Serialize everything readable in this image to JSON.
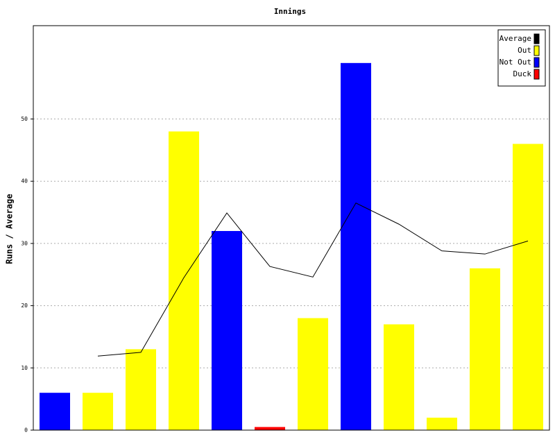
{
  "chart_data": {
    "type": "bar",
    "title": "Innings",
    "y_label": "Runs / Average",
    "categories": [
      null,
      null,
      null,
      null,
      null,
      null,
      null,
      null,
      null,
      null,
      null,
      null
    ],
    "ylim": [
      0,
      65
    ],
    "yticks": [
      0,
      10,
      20,
      30,
      40,
      50
    ],
    "grid": true,
    "legend": "top-right",
    "series": [
      {
        "name": "Average",
        "color": "#000000",
        "type": "line",
        "values": [
          null,
          11.9,
          12.5,
          24.5,
          34.9,
          26.3,
          24.6,
          36.5,
          33.1,
          28.8,
          28.3,
          30.4
        ]
      },
      {
        "name": "Out",
        "color": "#ffff00",
        "values": [
          null,
          6,
          13,
          48,
          null,
          null,
          18,
          null,
          17,
          2,
          26,
          46
        ]
      },
      {
        "name": "Not Out",
        "color": "#0000ff",
        "values": [
          6,
          null,
          null,
          null,
          32,
          null,
          null,
          59,
          null,
          null,
          null,
          null
        ]
      },
      {
        "name": "Duck",
        "color": "#ff0000",
        "values": [
          null,
          null,
          null,
          null,
          null,
          0.5,
          null,
          null,
          null,
          null,
          null,
          null
        ]
      }
    ]
  }
}
